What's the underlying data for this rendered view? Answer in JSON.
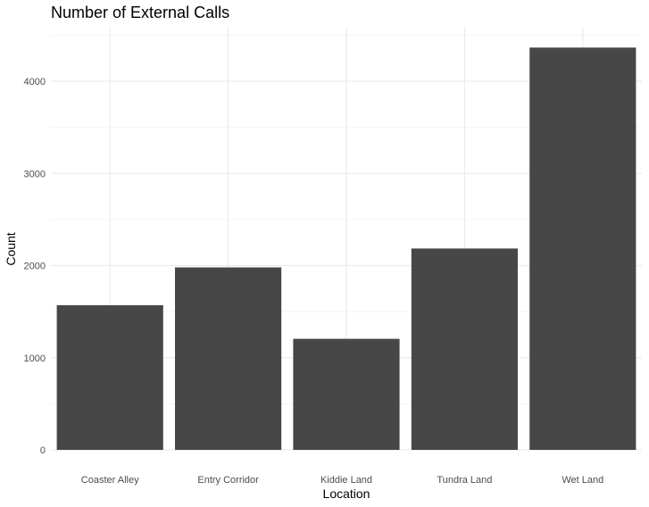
{
  "chart_data": {
    "type": "bar",
    "title": "Number of External Calls",
    "xlabel": "Location",
    "ylabel": "Count",
    "categories": [
      "Coaster Alley",
      "Entry Corridor",
      "Kiddie Land",
      "Tundra Land",
      "Wet Land"
    ],
    "values": [
      1570,
      1980,
      1205,
      2185,
      4365
    ],
    "ylim": [
      0,
      4500
    ],
    "yticks": [
      0,
      1000,
      2000,
      3000,
      4000
    ],
    "grid": true,
    "bar_color": "#474747",
    "grid_color": "#ebebeb"
  }
}
